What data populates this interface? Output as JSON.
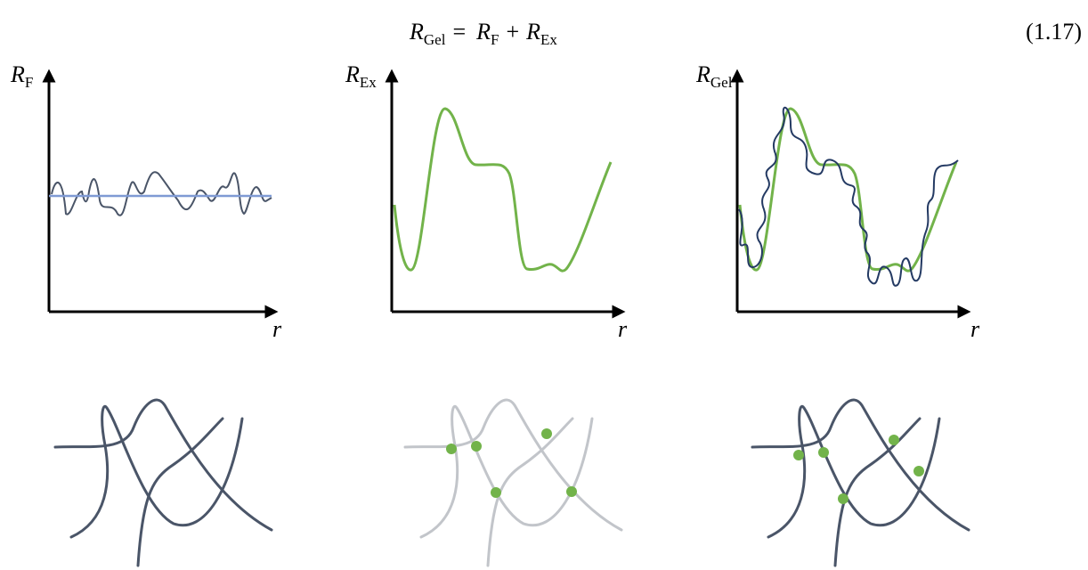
{
  "equation": {
    "lhs": {
      "symbol": "R",
      "subscript": "Gel"
    },
    "equals": "=",
    "rhs": [
      {
        "symbol": "R",
        "subscript": "F"
      },
      {
        "symbol": "R",
        "subscript": "Ex"
      }
    ],
    "plus": "+",
    "number": "(1.17)"
  },
  "panels": [
    {
      "y_label": {
        "symbol": "R",
        "subscript": "F"
      },
      "x_label": "r"
    },
    {
      "y_label": {
        "symbol": "R",
        "subscript": "Ex"
      },
      "x_label": "r"
    },
    {
      "y_label": {
        "symbol": "R",
        "subscript": "Gel"
      },
      "x_label": "r"
    }
  ]
}
